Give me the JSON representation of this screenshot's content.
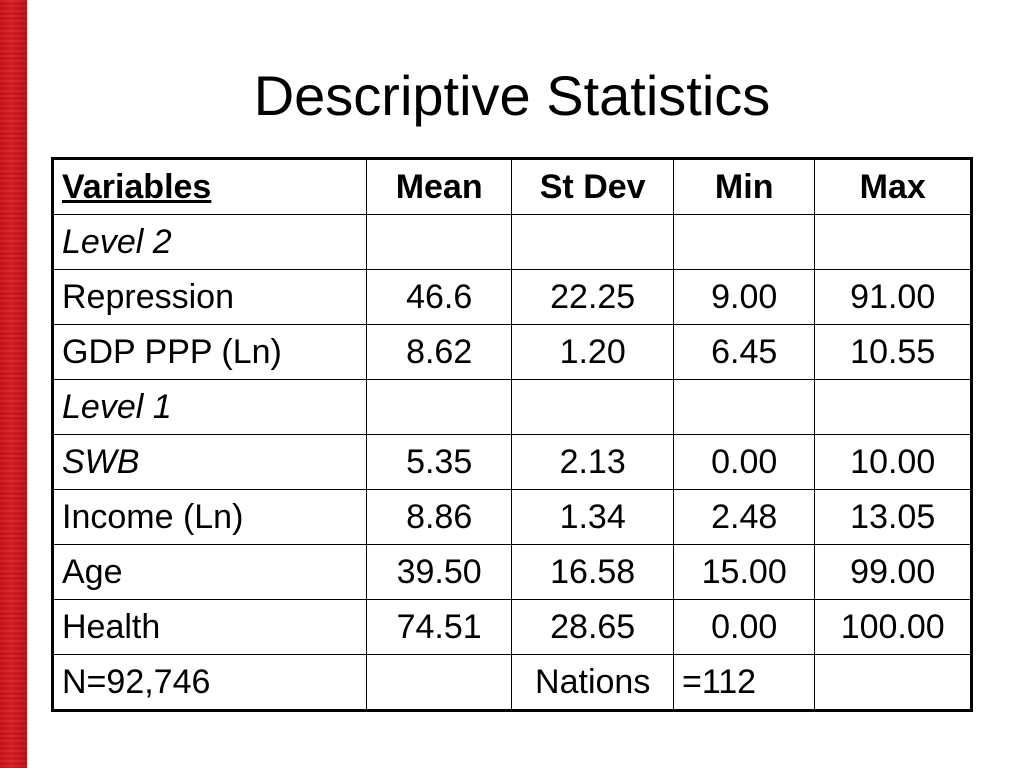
{
  "slide": {
    "title": "Descriptive Statistics",
    "accent_color": "#d01a1f"
  },
  "table": {
    "headers": {
      "variables": "Variables",
      "mean": "Mean",
      "stdev": "St Dev",
      "min": "Min",
      "max": "Max"
    },
    "level2_label": "Level 2",
    "level1_label": "Level 1",
    "rows": {
      "repression": {
        "label": "Repression",
        "mean": "46.6",
        "stdev": "22.25",
        "min": "9.00",
        "max": "91.00"
      },
      "gdp": {
        "label": "GDP PPP (Ln)",
        "mean": "8.62",
        "stdev": "1.20",
        "min": "6.45",
        "max": "10.55"
      },
      "swb": {
        "label": "SWB",
        "mean": "5.35",
        "stdev": "2.13",
        "min": "0.00",
        "max": "10.00"
      },
      "income": {
        "label": "Income (Ln)",
        "mean": "8.86",
        "stdev": "1.34",
        "min": "2.48",
        "max": "13.05"
      },
      "age": {
        "label": "Age",
        "mean": "39.50",
        "stdev": "16.58",
        "min": "15.00",
        "max": "99.00"
      },
      "health": {
        "label": "Health",
        "mean": "74.51",
        "stdev": "28.65",
        "min": "0.00",
        "max": "100.00"
      }
    },
    "footer": {
      "n": "N=92,746",
      "nations_label": "Nations",
      "nations_value": "=112"
    }
  }
}
